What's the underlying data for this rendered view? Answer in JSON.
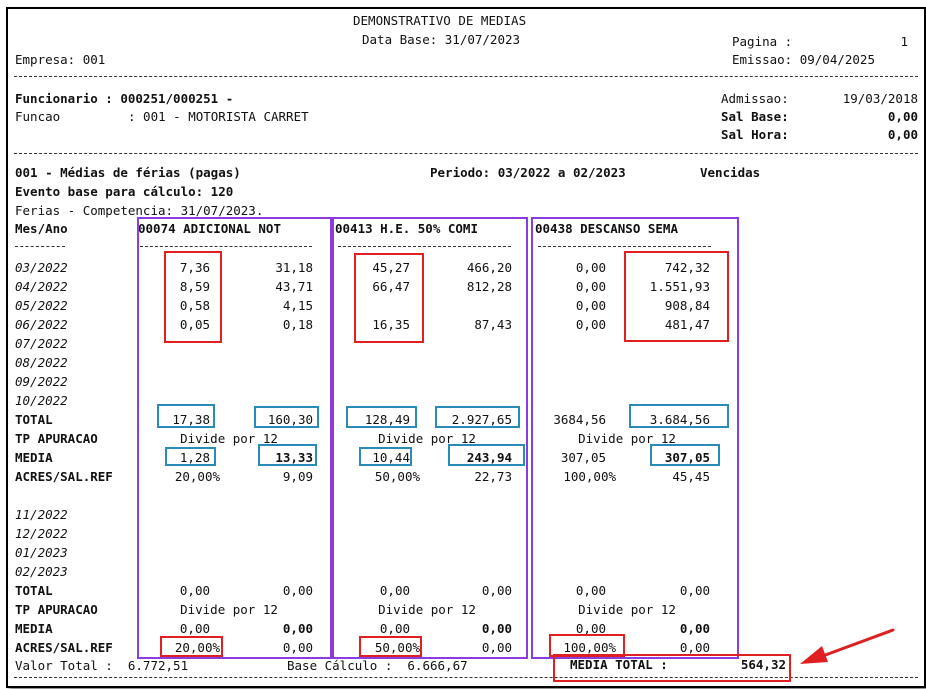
{
  "header": {
    "title": "DEMONSTRATIVO DE MEDIAS",
    "data_base": "Data Base: 31/07/2023",
    "pagina_label": "Pagina :",
    "pagina_value": "1",
    "empresa": "Empresa: 001",
    "emissao": "Emissao: 09/04/2025"
  },
  "employee": {
    "funcionario": "Funcionario : 000251/000251 -",
    "funcao_label": "Funcao",
    "funcao_value": ": 001 - MOTORISTA CARRET",
    "admissao_label": "Admissao:",
    "admissao_value": "19/03/2018",
    "sal_base_label": "Sal Base:",
    "sal_base_value": "0,00",
    "sal_hora_label": "Sal Hora:",
    "sal_hora_value": "0,00"
  },
  "section": {
    "title": "001 - Médias de férias (pagas)",
    "periodo": "Periodo: 03/2022 a 02/2023",
    "status": "Vencidas",
    "evento": "Evento base para cálculo: 120",
    "competencia": "Ferias - Competencia: 31/07/2023.",
    "mes_ano": "Mes/Ano",
    "col1": "00074 ADICIONAL NOT",
    "col2": "00413 H.E. 50% COMI",
    "col3": "00438 DESCANSO SEMA"
  },
  "months_a": [
    "03/2022",
    "04/2022",
    "05/2022",
    "06/2022",
    "07/2022",
    "08/2022",
    "09/2022",
    "10/2022"
  ],
  "months_b": [
    "11/2022",
    "12/2022",
    "01/2023",
    "02/2023"
  ],
  "data_rows": [
    [
      "7,36",
      "31,18",
      "45,27",
      "466,20",
      "0,00",
      "742,32"
    ],
    [
      "8,59",
      "43,71",
      "66,47",
      "812,28",
      "0,00",
      "1.551,93"
    ],
    [
      "0,58",
      "4,15",
      "",
      "",
      "0,00",
      "908,84"
    ],
    [
      "0,05",
      "0,18",
      "16,35",
      "87,43",
      "0,00",
      "481,47"
    ]
  ],
  "labels": {
    "total": "TOTAL",
    "tp_apuracao": "TP APURACAO",
    "media": "MEDIA",
    "acres": "ACRES/SAL.REF",
    "divide": "Divide por 12"
  },
  "block1": {
    "total": [
      "17,38",
      "160,30",
      "128,49",
      "2.927,65",
      "3684,56",
      "3.684,56"
    ],
    "media": [
      "1,28",
      "13,33",
      "10,44",
      "243,94",
      "307,05",
      "307,05"
    ],
    "acres": [
      "20,00%",
      "9,09",
      "50,00%",
      "22,73",
      "100,00%",
      "45,45"
    ]
  },
  "block2": {
    "total": [
      "0,00",
      "0,00",
      "0,00",
      "0,00",
      "0,00",
      "0,00"
    ],
    "media": [
      "0,00",
      "0,00",
      "0,00",
      "0,00",
      "0,00",
      "0,00"
    ],
    "acres": [
      "20,00%",
      "0,00",
      "50,00%",
      "0,00",
      "100,00%",
      "0,00"
    ]
  },
  "footer": {
    "valor_total": "Valor Total :  6.772,51",
    "base_calculo": "Base Cálculo :  6.666,67",
    "media_total_label": "MEDIA TOTAL :",
    "media_total_value": "564,32"
  },
  "colors": {
    "red": "#e02020",
    "blue": "#2a8bb8",
    "purple": "#8a3ce0"
  }
}
